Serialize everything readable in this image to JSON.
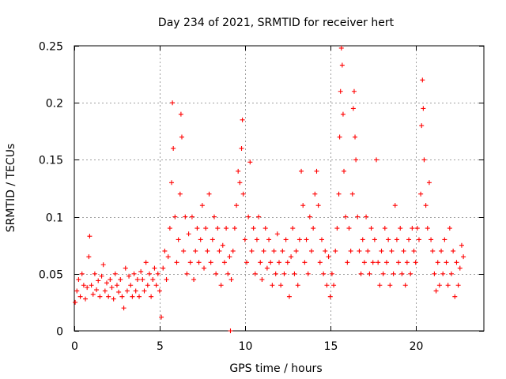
{
  "chart_data": {
    "type": "scatter",
    "title": "Day 234 of 2021, SRMTID for receiver hert",
    "xlabel": "GPS time / hours",
    "ylabel": "SRMTID / TECUs",
    "xlim": [
      0,
      24
    ],
    "ylim": [
      0,
      0.25
    ],
    "xticks": [
      0,
      5,
      10,
      15,
      20
    ],
    "xtick_labels": [
      "0",
      "5",
      "10",
      "15",
      "20"
    ],
    "yticks": [
      0,
      0.05,
      0.1,
      0.15,
      0.2,
      0.25
    ],
    "ytick_labels": [
      "0",
      "0.05",
      "0.1",
      "0.15",
      "0.2",
      "0.25"
    ],
    "grid": true,
    "marker": "+",
    "series_color": "#ff0000",
    "series": [
      {
        "name": "SRMTID",
        "points": [
          [
            0.05,
            0.025
          ],
          [
            0.15,
            0.035
          ],
          [
            0.25,
            0.045
          ],
          [
            0.35,
            0.03
          ],
          [
            0.45,
            0.05
          ],
          [
            0.55,
            0.04
          ],
          [
            0.65,
            0.028
          ],
          [
            0.75,
            0.038
          ],
          [
            0.85,
            0.065
          ],
          [
            0.9,
            0.083
          ],
          [
            1.0,
            0.04
          ],
          [
            1.1,
            0.032
          ],
          [
            1.2,
            0.05
          ],
          [
            1.3,
            0.036
          ],
          [
            1.4,
            0.044
          ],
          [
            1.5,
            0.03
          ],
          [
            1.6,
            0.048
          ],
          [
            1.7,
            0.058
          ],
          [
            1.8,
            0.035
          ],
          [
            1.9,
            0.042
          ],
          [
            2.0,
            0.03
          ],
          [
            2.1,
            0.045
          ],
          [
            2.2,
            0.038
          ],
          [
            2.3,
            0.028
          ],
          [
            2.4,
            0.05
          ],
          [
            2.5,
            0.04
          ],
          [
            2.6,
            0.034
          ],
          [
            2.7,
            0.045
          ],
          [
            2.8,
            0.03
          ],
          [
            2.9,
            0.02
          ],
          [
            3.0,
            0.055
          ],
          [
            3.1,
            0.035
          ],
          [
            3.2,
            0.048
          ],
          [
            3.3,
            0.04
          ],
          [
            3.4,
            0.03
          ],
          [
            3.5,
            0.05
          ],
          [
            3.6,
            0.035
          ],
          [
            3.7,
            0.045
          ],
          [
            3.8,
            0.03
          ],
          [
            3.9,
            0.052
          ],
          [
            4.0,
            0.045
          ],
          [
            4.1,
            0.035
          ],
          [
            4.2,
            0.06
          ],
          [
            4.3,
            0.04
          ],
          [
            4.4,
            0.05
          ],
          [
            4.5,
            0.03
          ],
          [
            4.6,
            0.045
          ],
          [
            4.7,
            0.055
          ],
          [
            4.8,
            0.04
          ],
          [
            4.9,
            0.05
          ],
          [
            5.0,
            0.035
          ],
          [
            5.1,
            0.012
          ],
          [
            5.2,
            0.055
          ],
          [
            5.3,
            0.07
          ],
          [
            5.4,
            0.045
          ],
          [
            5.5,
            0.065
          ],
          [
            5.6,
            0.09
          ],
          [
            5.7,
            0.13
          ],
          [
            5.75,
            0.2
          ],
          [
            5.8,
            0.16
          ],
          [
            5.9,
            0.1
          ],
          [
            6.0,
            0.06
          ],
          [
            6.1,
            0.08
          ],
          [
            6.2,
            0.12
          ],
          [
            6.25,
            0.19
          ],
          [
            6.3,
            0.17
          ],
          [
            6.4,
            0.07
          ],
          [
            6.5,
            0.1
          ],
          [
            6.6,
            0.05
          ],
          [
            6.7,
            0.085
          ],
          [
            6.8,
            0.06
          ],
          [
            6.9,
            0.1
          ],
          [
            7.0,
            0.045
          ],
          [
            7.1,
            0.07
          ],
          [
            7.2,
            0.09
          ],
          [
            7.3,
            0.06
          ],
          [
            7.4,
            0.08
          ],
          [
            7.5,
            0.11
          ],
          [
            7.6,
            0.055
          ],
          [
            7.7,
            0.09
          ],
          [
            7.8,
            0.07
          ],
          [
            7.9,
            0.12
          ],
          [
            8.0,
            0.06
          ],
          [
            8.1,
            0.08
          ],
          [
            8.2,
            0.1
          ],
          [
            8.3,
            0.05
          ],
          [
            8.4,
            0.09
          ],
          [
            8.5,
            0.07
          ],
          [
            8.6,
            0.04
          ],
          [
            8.7,
            0.075
          ],
          [
            8.8,
            0.06
          ],
          [
            8.9,
            0.09
          ],
          [
            9.0,
            0.05
          ],
          [
            9.1,
            0.065
          ],
          [
            9.15,
            0.0
          ],
          [
            9.2,
            0.045
          ],
          [
            9.3,
            0.07
          ],
          [
            9.4,
            0.09
          ],
          [
            9.5,
            0.11
          ],
          [
            9.6,
            0.14
          ],
          [
            9.7,
            0.13
          ],
          [
            9.8,
            0.16
          ],
          [
            9.85,
            0.185
          ],
          [
            9.9,
            0.12
          ],
          [
            10.0,
            0.08
          ],
          [
            10.1,
            0.06
          ],
          [
            10.2,
            0.1
          ],
          [
            10.3,
            0.148
          ],
          [
            10.4,
            0.07
          ],
          [
            10.5,
            0.09
          ],
          [
            10.6,
            0.05
          ],
          [
            10.7,
            0.08
          ],
          [
            10.8,
            0.1
          ],
          [
            10.9,
            0.06
          ],
          [
            11.0,
            0.045
          ],
          [
            11.1,
            0.07
          ],
          [
            11.2,
            0.09
          ],
          [
            11.3,
            0.055
          ],
          [
            11.4,
            0.08
          ],
          [
            11.5,
            0.06
          ],
          [
            11.6,
            0.04
          ],
          [
            11.7,
            0.07
          ],
          [
            11.8,
            0.05
          ],
          [
            11.9,
            0.085
          ],
          [
            12.0,
            0.06
          ],
          [
            12.1,
            0.04
          ],
          [
            12.2,
            0.07
          ],
          [
            12.3,
            0.05
          ],
          [
            12.4,
            0.08
          ],
          [
            12.5,
            0.06
          ],
          [
            12.6,
            0.03
          ],
          [
            12.7,
            0.065
          ],
          [
            12.8,
            0.09
          ],
          [
            12.9,
            0.05
          ],
          [
            13.0,
            0.07
          ],
          [
            13.1,
            0.04
          ],
          [
            13.2,
            0.08
          ],
          [
            13.3,
            0.14
          ],
          [
            13.4,
            0.11
          ],
          [
            13.5,
            0.06
          ],
          [
            13.6,
            0.08
          ],
          [
            13.7,
            0.05
          ],
          [
            13.8,
            0.1
          ],
          [
            13.9,
            0.07
          ],
          [
            14.0,
            0.09
          ],
          [
            14.1,
            0.12
          ],
          [
            14.2,
            0.14
          ],
          [
            14.3,
            0.11
          ],
          [
            14.4,
            0.06
          ],
          [
            14.5,
            0.08
          ],
          [
            14.6,
            0.05
          ],
          [
            14.7,
            0.07
          ],
          [
            14.8,
            0.04
          ],
          [
            14.9,
            0.065
          ],
          [
            15.0,
            0.03
          ],
          [
            15.1,
            0.05
          ],
          [
            15.2,
            0.04
          ],
          [
            15.3,
            0.07
          ],
          [
            15.4,
            0.09
          ],
          [
            15.5,
            0.12
          ],
          [
            15.55,
            0.17
          ],
          [
            15.6,
            0.21
          ],
          [
            15.65,
            0.248
          ],
          [
            15.7,
            0.233
          ],
          [
            15.75,
            0.19
          ],
          [
            15.8,
            0.14
          ],
          [
            15.9,
            0.1
          ],
          [
            16.0,
            0.06
          ],
          [
            16.1,
            0.09
          ],
          [
            16.2,
            0.07
          ],
          [
            16.3,
            0.12
          ],
          [
            16.35,
            0.195
          ],
          [
            16.4,
            0.21
          ],
          [
            16.45,
            0.17
          ],
          [
            16.5,
            0.15
          ],
          [
            16.6,
            0.1
          ],
          [
            16.7,
            0.07
          ],
          [
            16.8,
            0.05
          ],
          [
            16.9,
            0.08
          ],
          [
            17.0,
            0.06
          ],
          [
            17.1,
            0.1
          ],
          [
            17.2,
            0.07
          ],
          [
            17.3,
            0.05
          ],
          [
            17.4,
            0.09
          ],
          [
            17.5,
            0.06
          ],
          [
            17.6,
            0.08
          ],
          [
            17.7,
            0.15
          ],
          [
            17.8,
            0.06
          ],
          [
            17.9,
            0.04
          ],
          [
            18.0,
            0.07
          ],
          [
            18.1,
            0.05
          ],
          [
            18.2,
            0.09
          ],
          [
            18.3,
            0.06
          ],
          [
            18.4,
            0.08
          ],
          [
            18.5,
            0.04
          ],
          [
            18.6,
            0.07
          ],
          [
            18.7,
            0.05
          ],
          [
            18.8,
            0.11
          ],
          [
            18.9,
            0.08
          ],
          [
            19.0,
            0.06
          ],
          [
            19.1,
            0.09
          ],
          [
            19.2,
            0.05
          ],
          [
            19.3,
            0.07
          ],
          [
            19.4,
            0.04
          ],
          [
            19.5,
            0.06
          ],
          [
            19.6,
            0.08
          ],
          [
            19.7,
            0.05
          ],
          [
            19.8,
            0.09
          ],
          [
            19.9,
            0.07
          ],
          [
            20.0,
            0.06
          ],
          [
            20.1,
            0.09
          ],
          [
            20.2,
            0.08
          ],
          [
            20.3,
            0.12
          ],
          [
            20.35,
            0.18
          ],
          [
            20.4,
            0.22
          ],
          [
            20.45,
            0.195
          ],
          [
            20.5,
            0.15
          ],
          [
            20.6,
            0.11
          ],
          [
            20.7,
            0.09
          ],
          [
            20.8,
            0.13
          ],
          [
            20.9,
            0.08
          ],
          [
            21.0,
            0.07
          ],
          [
            21.1,
            0.05
          ],
          [
            21.2,
            0.035
          ],
          [
            21.3,
            0.06
          ],
          [
            21.4,
            0.04
          ],
          [
            21.5,
            0.07
          ],
          [
            21.6,
            0.05
          ],
          [
            21.7,
            0.08
          ],
          [
            21.8,
            0.06
          ],
          [
            21.9,
            0.04
          ],
          [
            22.0,
            0.09
          ],
          [
            22.1,
            0.05
          ],
          [
            22.2,
            0.07
          ],
          [
            22.3,
            0.03
          ],
          [
            22.4,
            0.06
          ],
          [
            22.5,
            0.04
          ],
          [
            22.6,
            0.055
          ],
          [
            22.7,
            0.075
          ],
          [
            22.8,
            0.065
          ]
        ]
      }
    ]
  }
}
